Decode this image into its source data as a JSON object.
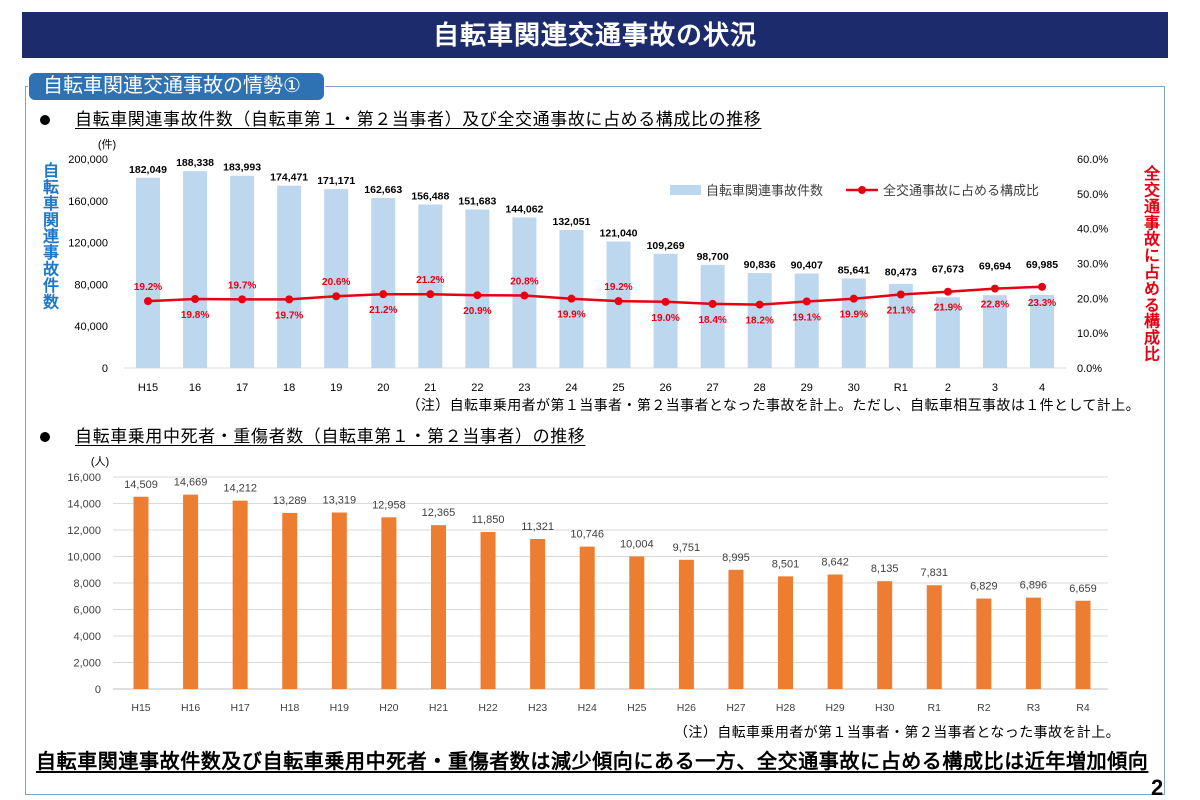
{
  "header": {
    "title": "自転車関連交通事故の状況"
  },
  "section_tab": {
    "label": "自転車関連交通事故の情勢①"
  },
  "conclusion": "自転車関連事故件数及び自転車乗用中死者・重傷者数は減少傾向にある一方、全交通事故に占める構成比は近年増加傾向",
  "page_number": "2",
  "colors": {
    "header_bg": "#1c2b6b",
    "tab_bg": "#2f72b4",
    "frame_border": "#7ea6cc",
    "left_axis_label": "#1f77c8",
    "right_axis_label": "#e50012"
  },
  "chart_data": [
    {
      "type": "bar",
      "title": "自転車関連事故件数（自転車第１・第２当事者）及び全交通事故に占める構成比の推移",
      "categories": [
        "H15",
        "16",
        "17",
        "18",
        "19",
        "20",
        "21",
        "22",
        "23",
        "24",
        "25",
        "26",
        "27",
        "28",
        "29",
        "30",
        "R1",
        "2",
        "3",
        "4"
      ],
      "series": [
        {
          "name": "自転車関連事故件数",
          "type": "bar",
          "color": "#bdd7ee",
          "values": [
            182049,
            188338,
            183993,
            174471,
            171171,
            162663,
            156488,
            151683,
            144062,
            132051,
            121040,
            109269,
            98700,
            90836,
            90407,
            85641,
            80473,
            67673,
            69694,
            69985
          ]
        },
        {
          "name": "全交通事故に占める構成比",
          "type": "line",
          "color": "#e60012",
          "unit": "%",
          "values": [
            19.2,
            19.8,
            19.7,
            19.7,
            20.6,
            21.2,
            21.2,
            20.9,
            20.8,
            19.9,
            19.2,
            19.0,
            18.4,
            18.2,
            19.1,
            19.9,
            21.1,
            21.9,
            22.8,
            23.3
          ]
        }
      ],
      "ylabel": "自転車関連事故件数",
      "yunit": "(件)",
      "ylim": [
        0,
        200000
      ],
      "yticks": [
        "0",
        "40,000",
        "80,000",
        "120,000",
        "160,000",
        "200,000"
      ],
      "y2label": "全交通事故に占める構成比",
      "y2lim": [
        0,
        60
      ],
      "y2ticks": [
        "0.0%",
        "10.0%",
        "20.0%",
        "30.0%",
        "40.0%",
        "50.0%",
        "60.0%"
      ],
      "grid": false,
      "note": "（注）自転車乗用者が第１当事者・第２当事者となった事故を計上。ただし、自転車相互事故は１件として計上。"
    },
    {
      "type": "bar",
      "title": "自転車乗用中死者・重傷者数（自転車第１・第２当事者）の推移",
      "categories": [
        "H15",
        "H16",
        "H17",
        "H18",
        "H19",
        "H20",
        "H21",
        "H22",
        "H23",
        "H24",
        "H25",
        "H26",
        "H27",
        "H28",
        "H29",
        "H30",
        "R1",
        "R2",
        "R3",
        "R4"
      ],
      "values": [
        14509,
        14669,
        14212,
        13289,
        13319,
        12958,
        12365,
        11850,
        11321,
        10746,
        10004,
        9751,
        8995,
        8501,
        8642,
        8135,
        7831,
        6829,
        6896,
        6659
      ],
      "color": "#ed7d31",
      "yunit": "(人)",
      "ylim": [
        0,
        16000
      ],
      "yticks": [
        "0",
        "2,000",
        "4,000",
        "6,000",
        "8,000",
        "10,000",
        "12,000",
        "14,000",
        "16,000"
      ],
      "grid": true,
      "note": "（注）自転車乗用者が第１当事者・第２当事者となった事故を計上。"
    }
  ]
}
